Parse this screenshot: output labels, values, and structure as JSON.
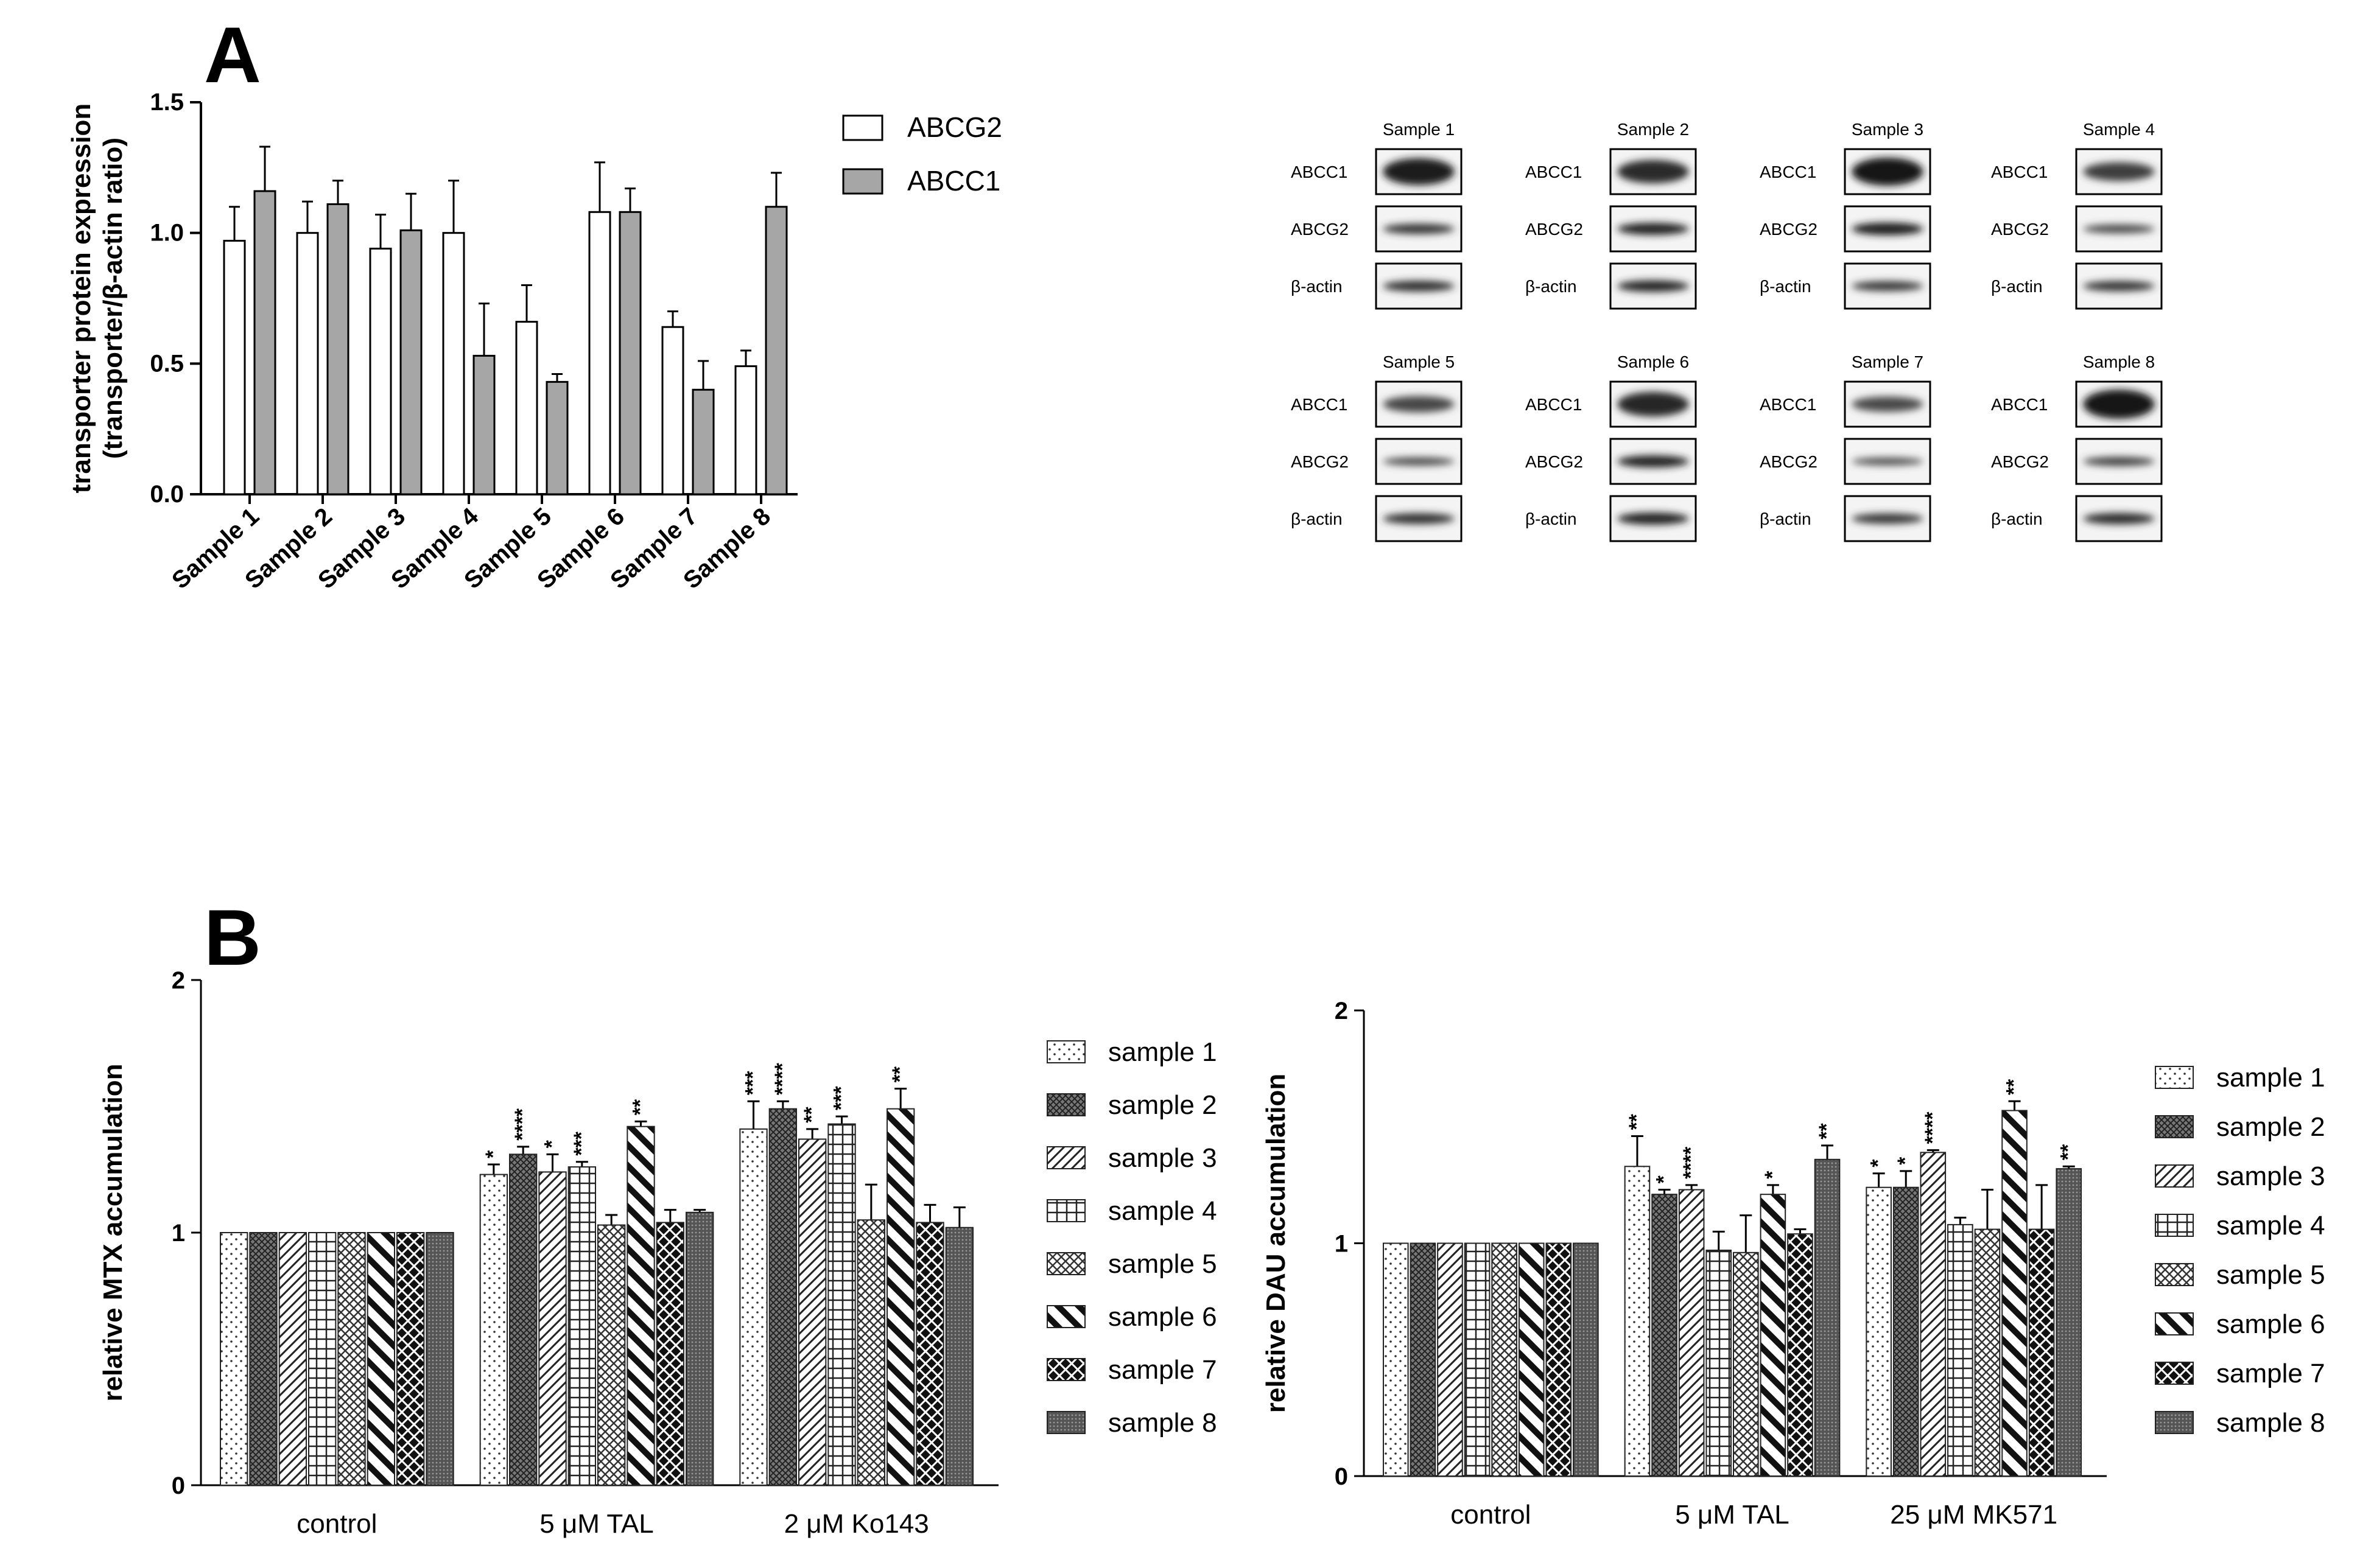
{
  "panel_labels": {
    "a": "A",
    "b": "B"
  },
  "chart_data": [
    {
      "id": "A",
      "type": "bar",
      "title": "",
      "xlabel": "",
      "ylabel_line1": "transporter protein expression",
      "ylabel_line2": "(transporter/β-actin ratio)",
      "ylim": [
        0,
        1.5
      ],
      "yticks": [
        "0.0",
        "0.5",
        "1.0",
        "1.5"
      ],
      "categories": [
        "Sample 1",
        "Sample 2",
        "Sample 3",
        "Sample 4",
        "Sample 5",
        "Sample 6",
        "Sample 7",
        "Sample 8"
      ],
      "series": [
        {
          "name": "ABCG2",
          "color": "#ffffff",
          "values": [
            0.97,
            1.0,
            0.94,
            1.0,
            0.66,
            1.08,
            0.64,
            0.49
          ],
          "errors": [
            0.13,
            0.12,
            0.13,
            0.2,
            0.14,
            0.19,
            0.06,
            0.06
          ]
        },
        {
          "name": "ABCC1",
          "color": "#a6a6a6",
          "values": [
            1.16,
            1.11,
            1.01,
            0.53,
            0.43,
            1.08,
            0.4,
            1.1
          ],
          "errors": [
            0.17,
            0.09,
            0.14,
            0.2,
            0.03,
            0.09,
            0.11,
            0.13
          ]
        }
      ],
      "legend_position": "top-right"
    },
    {
      "id": "B1",
      "type": "bar",
      "title": "",
      "xlabel": "",
      "ylabel": "relative MTX accumulation",
      "ylim": [
        0,
        2
      ],
      "yticks": [
        "0",
        "1",
        "2"
      ],
      "categories": [
        "control",
        "5 μM TAL",
        "2 μM Ko143"
      ],
      "series": [
        {
          "name": "sample 1",
          "pattern": "dots",
          "values": [
            1.0,
            1.23,
            1.41
          ],
          "errors": [
            0,
            0.04,
            0.11
          ],
          "stars": [
            "",
            "*",
            "***"
          ]
        },
        {
          "name": "sample 2",
          "pattern": "crosshatch",
          "values": [
            1.0,
            1.31,
            1.49
          ],
          "errors": [
            0,
            0.03,
            0.03
          ],
          "stars": [
            "",
            "****",
            "****"
          ]
        },
        {
          "name": "sample 3",
          "pattern": "diag-fwd",
          "values": [
            1.0,
            1.24,
            1.37
          ],
          "errors": [
            0,
            0.07,
            0.04
          ],
          "stars": [
            "",
            "*",
            "**"
          ]
        },
        {
          "name": "sample 4",
          "pattern": "grid",
          "values": [
            1.0,
            1.26,
            1.43
          ],
          "errors": [
            0,
            0.02,
            0.03
          ],
          "stars": [
            "",
            "***",
            "***"
          ]
        },
        {
          "name": "sample 5",
          "pattern": "diag-cross",
          "values": [
            1.0,
            1.03,
            1.05
          ],
          "errors": [
            0,
            0.04,
            0.14
          ],
          "stars": [
            "",
            "",
            ""
          ]
        },
        {
          "name": "sample 6",
          "pattern": "thick-diag-back",
          "values": [
            1.0,
            1.42,
            1.49
          ],
          "errors": [
            0,
            0.02,
            0.08
          ],
          "stars": [
            "",
            "**",
            "**"
          ]
        },
        {
          "name": "sample 7",
          "pattern": "checker-dark",
          "values": [
            1.0,
            1.04,
            1.04
          ],
          "errors": [
            0,
            0.05,
            0.07
          ],
          "stars": [
            "",
            "",
            ""
          ]
        },
        {
          "name": "sample 8",
          "pattern": "dense-gray",
          "values": [
            1.0,
            1.08,
            1.02
          ],
          "errors": [
            0,
            0.01,
            0.08
          ],
          "stars": [
            "",
            "",
            ""
          ]
        }
      ]
    },
    {
      "id": "B2",
      "type": "bar",
      "title": "",
      "xlabel": "",
      "ylabel": "relative DAU accumulation",
      "ylim": [
        0,
        2
      ],
      "yticks": [
        "0",
        "1",
        "2"
      ],
      "categories": [
        "control",
        "5 μM TAL",
        "25 μM MK571"
      ],
      "series": [
        {
          "name": "sample 1",
          "pattern": "dots",
          "values": [
            1.0,
            1.33,
            1.24
          ],
          "errors": [
            0,
            0.13,
            0.06
          ],
          "stars": [
            "",
            "**",
            "*"
          ]
        },
        {
          "name": "sample 2",
          "pattern": "crosshatch",
          "values": [
            1.0,
            1.21,
            1.24
          ],
          "errors": [
            0,
            0.02,
            0.07
          ],
          "stars": [
            "",
            "*",
            "*"
          ]
        },
        {
          "name": "sample 3",
          "pattern": "diag-fwd",
          "values": [
            1.0,
            1.23,
            1.39
          ],
          "errors": [
            0,
            0.02,
            0.01
          ],
          "stars": [
            "",
            "****",
            "****"
          ]
        },
        {
          "name": "sample 4",
          "pattern": "grid",
          "values": [
            1.0,
            0.97,
            1.08
          ],
          "errors": [
            0,
            0.08,
            0.03
          ],
          "stars": [
            "",
            "",
            ""
          ]
        },
        {
          "name": "sample 5",
          "pattern": "diag-cross",
          "values": [
            1.0,
            0.96,
            1.06
          ],
          "errors": [
            0,
            0.16,
            0.17
          ],
          "stars": [
            "",
            "",
            ""
          ]
        },
        {
          "name": "sample 6",
          "pattern": "thick-diag-back",
          "values": [
            1.0,
            1.21,
            1.57
          ],
          "errors": [
            0,
            0.04,
            0.04
          ],
          "stars": [
            "",
            "*",
            "**"
          ]
        },
        {
          "name": "sample 7",
          "pattern": "checker-dark",
          "values": [
            1.0,
            1.04,
            1.06
          ],
          "errors": [
            0,
            0.02,
            0.19
          ],
          "stars": [
            "",
            "",
            ""
          ]
        },
        {
          "name": "sample 8",
          "pattern": "dense-gray",
          "values": [
            1.0,
            1.36,
            1.32
          ],
          "errors": [
            0,
            0.06,
            0.01
          ],
          "stars": [
            "",
            "**",
            "**"
          ]
        }
      ]
    }
  ],
  "western_blots": {
    "row_labels": [
      "ABCC1",
      "ABCG2",
      "β-actin"
    ],
    "samples": [
      {
        "title": "Sample 1",
        "bands": [
          0.9,
          0.65,
          0.7
        ]
      },
      {
        "title": "Sample 2",
        "bands": [
          0.75,
          0.85,
          0.8
        ]
      },
      {
        "title": "Sample 3",
        "bands": [
          0.95,
          0.9,
          0.6
        ]
      },
      {
        "title": "Sample 4",
        "bands": [
          0.55,
          0.45,
          0.65
        ]
      },
      {
        "title": "Sample 5",
        "bands": [
          0.45,
          0.4,
          0.7
        ]
      },
      {
        "title": "Sample 6",
        "bands": [
          0.8,
          0.85,
          0.85
        ]
      },
      {
        "title": "Sample 7",
        "bands": [
          0.4,
          0.35,
          0.65
        ]
      },
      {
        "title": "Sample 8",
        "bands": [
          1.0,
          0.5,
          0.75
        ]
      }
    ]
  }
}
